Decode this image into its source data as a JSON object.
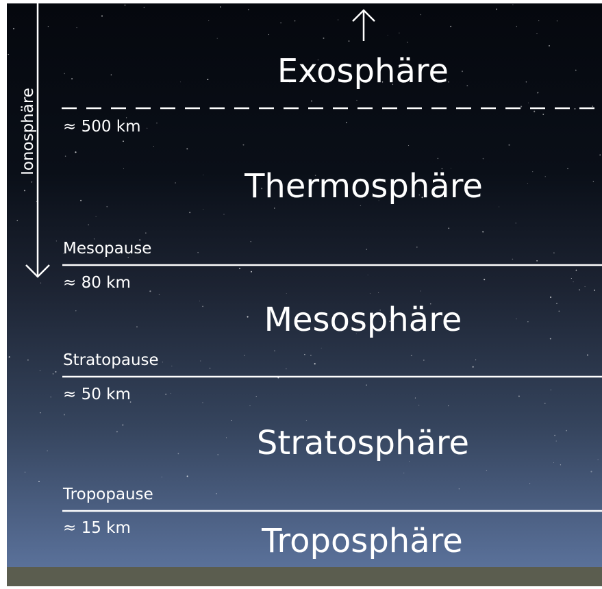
{
  "ionosphere_label": "Ionosphäre",
  "layers": [
    "Exosphäre",
    "Thermosphäre",
    "Mesosphäre",
    "Stratosphäre",
    "Troposphäre"
  ],
  "boundaries": [
    {
      "altitude": "≈ 500 km"
    },
    {
      "name": "Mesopause",
      "altitude": "≈ 80 km"
    },
    {
      "name": "Stratopause",
      "altitude": "≈ 50 km"
    },
    {
      "name": "Tropopause",
      "altitude": "≈ 15 km"
    }
  ]
}
